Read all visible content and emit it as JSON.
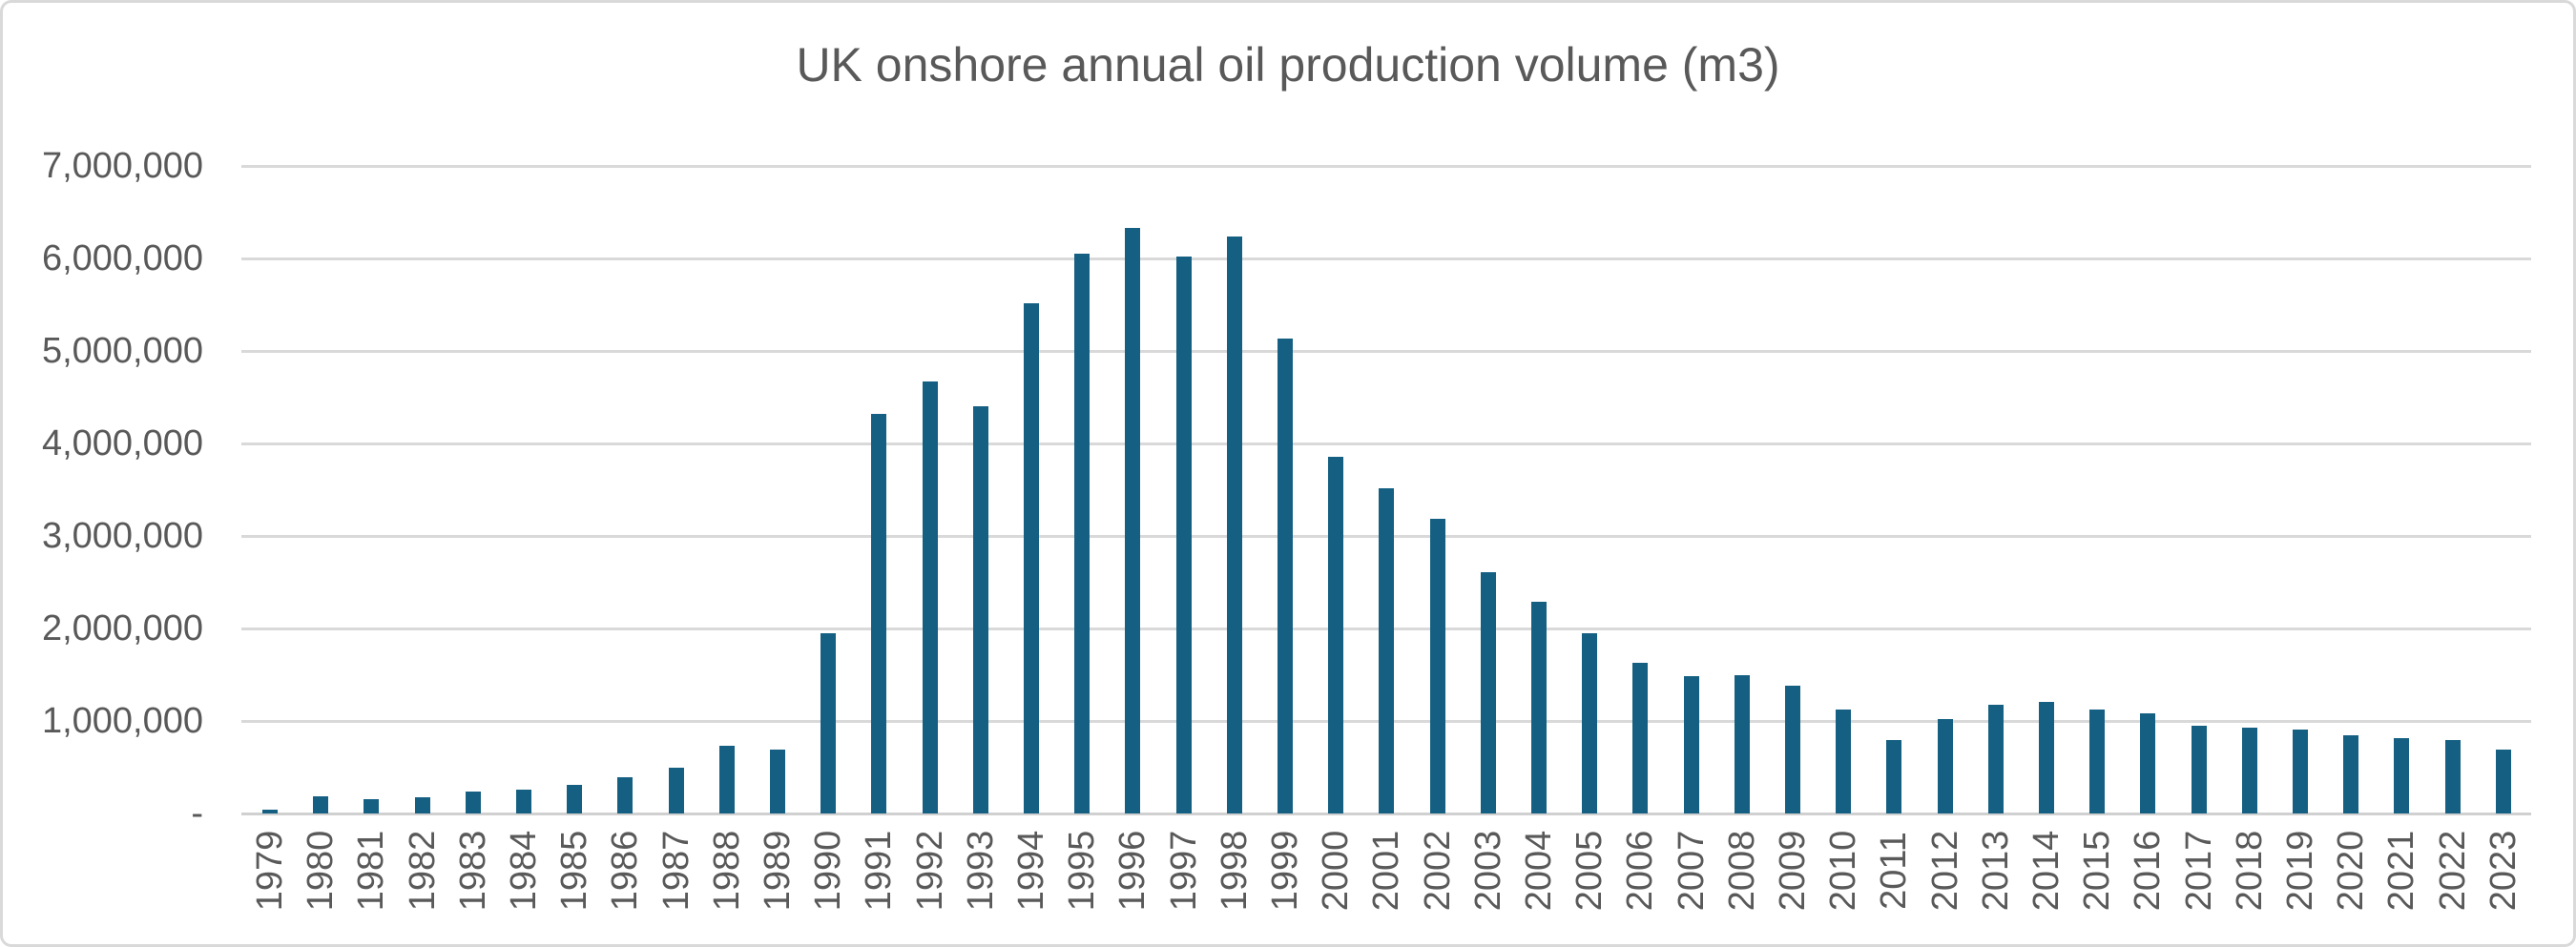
{
  "chart_data": {
    "type": "bar",
    "title": "UK onshore annual oil production volume (m3)",
    "xlabel": "",
    "ylabel": "",
    "ylim": [
      0,
      7000000
    ],
    "grid": "horizontal-only",
    "legend": "none",
    "x_tick_rotation_degrees": 90,
    "categories": [
      "1979",
      "1980",
      "1981",
      "1982",
      "1983",
      "1984",
      "1985",
      "1986",
      "1987",
      "1988",
      "1989",
      "1990",
      "1991",
      "1992",
      "1993",
      "1994",
      "1995",
      "1996",
      "1997",
      "1998",
      "1999",
      "2000",
      "2001",
      "2002",
      "2003",
      "2004",
      "2005",
      "2006",
      "2007",
      "2008",
      "2009",
      "2010",
      "2011",
      "2012",
      "2013",
      "2014",
      "2015",
      "2016",
      "2017",
      "2018",
      "2019",
      "2020",
      "2021",
      "2022",
      "2023"
    ],
    "values": [
      40000,
      190000,
      155000,
      175000,
      240000,
      260000,
      310000,
      390000,
      490000,
      730000,
      690000,
      1950000,
      4320000,
      4670000,
      4400000,
      5520000,
      6050000,
      6330000,
      6020000,
      6240000,
      5130000,
      3860000,
      3520000,
      3190000,
      2610000,
      2290000,
      1950000,
      1630000,
      1480000,
      1490000,
      1380000,
      1120000,
      790000,
      1020000,
      1180000,
      1210000,
      1120000,
      1080000,
      950000,
      930000,
      910000,
      850000,
      810000,
      790000,
      690000
    ],
    "y_ticks": [
      {
        "label": "-",
        "value": 0
      },
      {
        "label": "1,000,000",
        "value": 1000000
      },
      {
        "label": "2,000,000",
        "value": 2000000
      },
      {
        "label": "3,000,000",
        "value": 3000000
      },
      {
        "label": "4,000,000",
        "value": 4000000
      },
      {
        "label": "5,000,000",
        "value": 5000000
      },
      {
        "label": "6,000,000",
        "value": 6000000
      },
      {
        "label": "7,000,000",
        "value": 7000000
      }
    ]
  },
  "colors": {
    "bar": "#156082",
    "gridline": "#D9D9D9",
    "axis_line": "#D0D0D0",
    "text": "#595959",
    "border": "#D9D9D9",
    "background": "#FFFFFF"
  }
}
